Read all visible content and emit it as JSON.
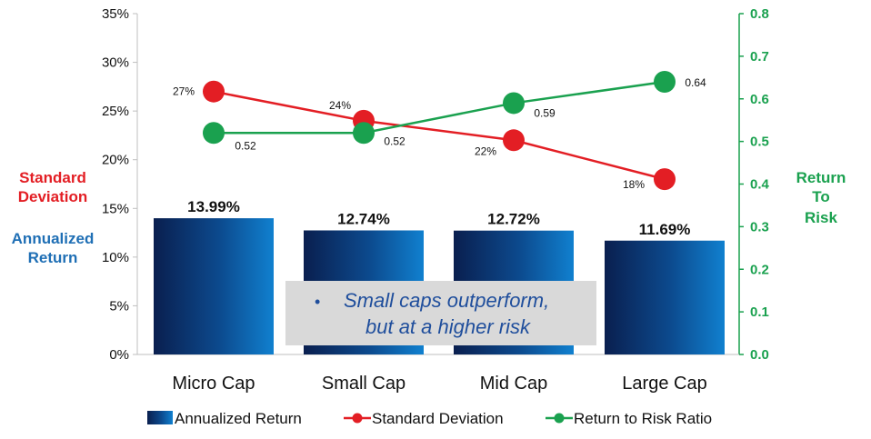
{
  "chart_data": {
    "type": "bar+line",
    "categories": [
      "Micro Cap",
      "Small Cap",
      "Mid Cap",
      "Large Cap"
    ],
    "series": [
      {
        "name": "Annualized Return",
        "type": "bar",
        "axis": "left",
        "values": [
          13.99,
          12.74,
          12.72,
          11.69
        ],
        "labels": [
          "13.99%",
          "12.74%",
          "12.72%",
          "11.69%"
        ],
        "color": "#0b63b3"
      },
      {
        "name": "Standard Deviation",
        "type": "line",
        "axis": "left",
        "values": [
          27,
          24,
          22,
          18
        ],
        "labels": [
          "27%",
          "24%",
          "22%",
          "18%"
        ],
        "color": "#e31e24"
      },
      {
        "name": "Return to Risk Ratio",
        "type": "line",
        "axis": "right",
        "values": [
          0.52,
          0.52,
          0.59,
          0.64
        ],
        "labels": [
          "0.52",
          "0.52",
          "0.59",
          "0.64"
        ],
        "color": "#1aa14f"
      }
    ],
    "y_left": {
      "min": 0,
      "max": 35,
      "ticks": [
        "0%",
        "5%",
        "10%",
        "15%",
        "20%",
        "25%",
        "30%",
        "35%"
      ],
      "title_top": [
        "Standard",
        "Deviation"
      ],
      "title_bottom": [
        "Annualized",
        "Return"
      ]
    },
    "y_right": {
      "min": 0,
      "max": 0.8,
      "ticks": [
        "0.0",
        "0.1",
        "0.2",
        "0.3",
        "0.4",
        "0.5",
        "0.6",
        "0.7",
        "0.8"
      ],
      "title": [
        "Return",
        "To",
        "Risk"
      ]
    },
    "annotation": {
      "bullet": "•",
      "line1": "Small caps outperform,",
      "line2": "but at a higher risk"
    },
    "legend": {
      "position": "bottom",
      "items": [
        "Annualized Return",
        "Standard Deviation",
        "Return to Risk Ratio"
      ]
    },
    "colors": {
      "bar_dark": "#0a1f4f",
      "bar_light": "#0f74c4",
      "red": "#e31e24",
      "green": "#1aa14f",
      "axis_right": "#1aa14f"
    }
  }
}
